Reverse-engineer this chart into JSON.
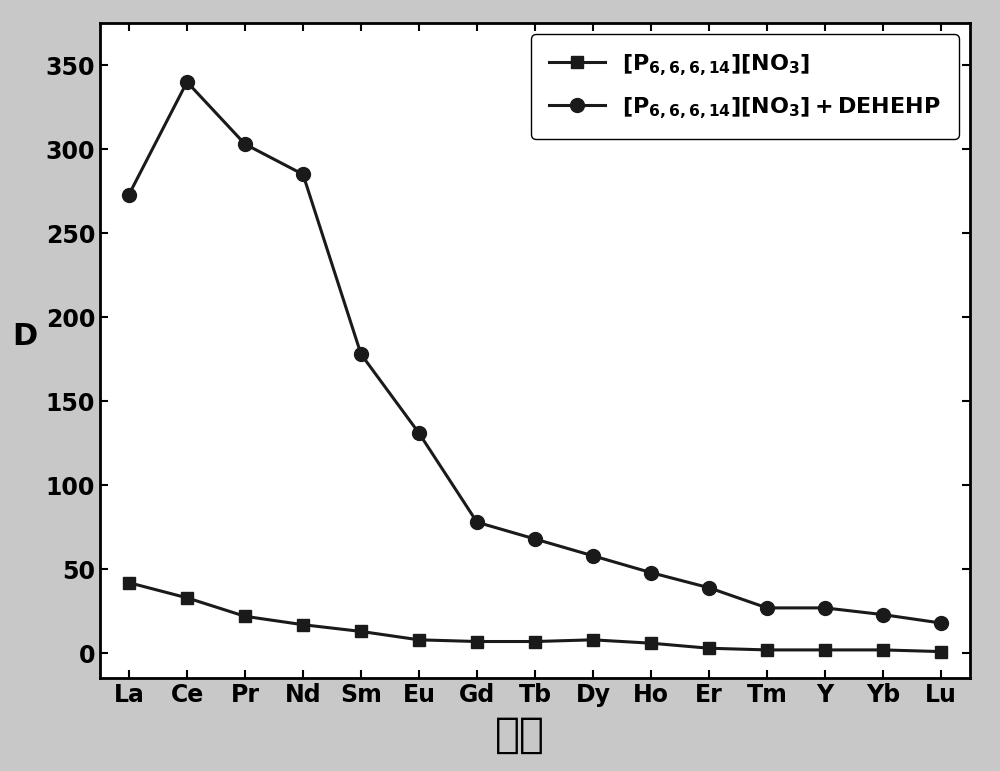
{
  "elements": [
    "La",
    "Ce",
    "Pr",
    "Nd",
    "Sm",
    "Eu",
    "Gd",
    "Tb",
    "Dy",
    "Ho",
    "Er",
    "Tm",
    "Y",
    "Yb",
    "Lu"
  ],
  "series1_values": [
    42,
    33,
    22,
    17,
    13,
    8,
    7,
    7,
    8,
    6,
    3,
    2,
    2,
    2,
    1
  ],
  "series2_values": [
    273,
    340,
    303,
    285,
    178,
    131,
    78,
    68,
    58,
    48,
    39,
    27,
    27,
    23,
    18
  ],
  "series1_label_p": "[P",
  "series1_label_sub": "6,6,6,14",
  "series1_label_rest": "][NO",
  "series1_label_sub2": "3",
  "series1_label_end": "]",
  "series2_suffix": "+DEHEHP",
  "ylabel": "D",
  "xlabel": "元素",
  "ylim": [
    -15,
    375
  ],
  "yticks": [
    0,
    50,
    100,
    150,
    200,
    250,
    300,
    350
  ],
  "line_color": "#1a1a1a",
  "bg_color": "#c8c8c8",
  "plot_bg": "#ffffff",
  "label_fontsize": 22,
  "tick_fontsize": 17,
  "legend_fontsize": 16,
  "xlabel_fontsize": 30
}
